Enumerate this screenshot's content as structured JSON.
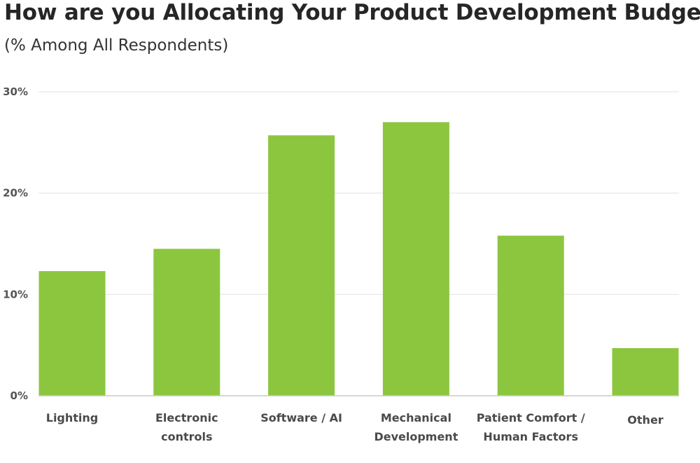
{
  "chart_data": {
    "type": "bar",
    "title": "How are you Allocating Your Product Development Budget?",
    "subtitle": "(% Among All Respondents)",
    "xlabel": "",
    "ylabel": "",
    "ylim": [
      0,
      30
    ],
    "yticks": [
      {
        "value": 0,
        "label": "0%"
      },
      {
        "value": 10,
        "label": "10%"
      },
      {
        "value": 20,
        "label": "20%"
      },
      {
        "value": 30,
        "label": "30%"
      }
    ],
    "grid": true,
    "categories": [
      [
        "Lighting"
      ],
      [
        "Electronic",
        "controls"
      ],
      [
        "Software / AI"
      ],
      [
        "Mechanical",
        "Development"
      ],
      [
        "Patient Comfort /",
        "Human Factors"
      ],
      [
        "Other"
      ]
    ],
    "values": [
      12.3,
      14.5,
      25.7,
      27.0,
      15.8,
      4.7
    ],
    "bar_color": "#8cc63f",
    "grid_color": "#e6e6e6",
    "axis_color": "#c8c8c8"
  }
}
